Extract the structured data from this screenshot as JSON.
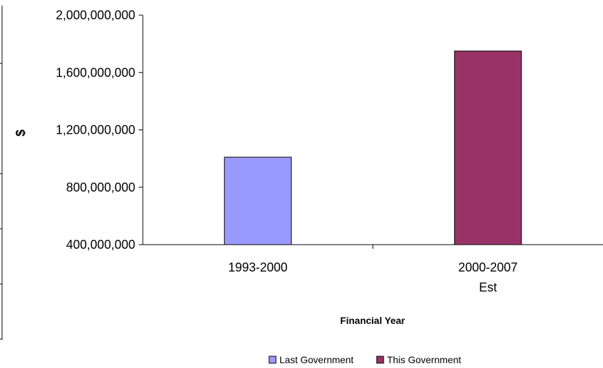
{
  "chart_data": {
    "type": "bar",
    "title": "",
    "xlabel": "Financial Year",
    "ylabel": "$",
    "categories": [
      [
        "1993-2000"
      ],
      [
        "2000-2007",
        "Est"
      ]
    ],
    "series": [
      {
        "name": "Last Government",
        "color": "#9999ff",
        "values": [
          1010000000,
          null
        ]
      },
      {
        "name": "This Government",
        "color": "#993366",
        "values": [
          null,
          1750000000
        ]
      }
    ],
    "ylim": [
      400000000,
      2000000000
    ],
    "yticks": [
      "400,000,000",
      "800,000,000",
      "1,200,000,000",
      "1,600,000,000",
      "2,000,000,000"
    ],
    "grid": false,
    "legend": "bottom"
  }
}
